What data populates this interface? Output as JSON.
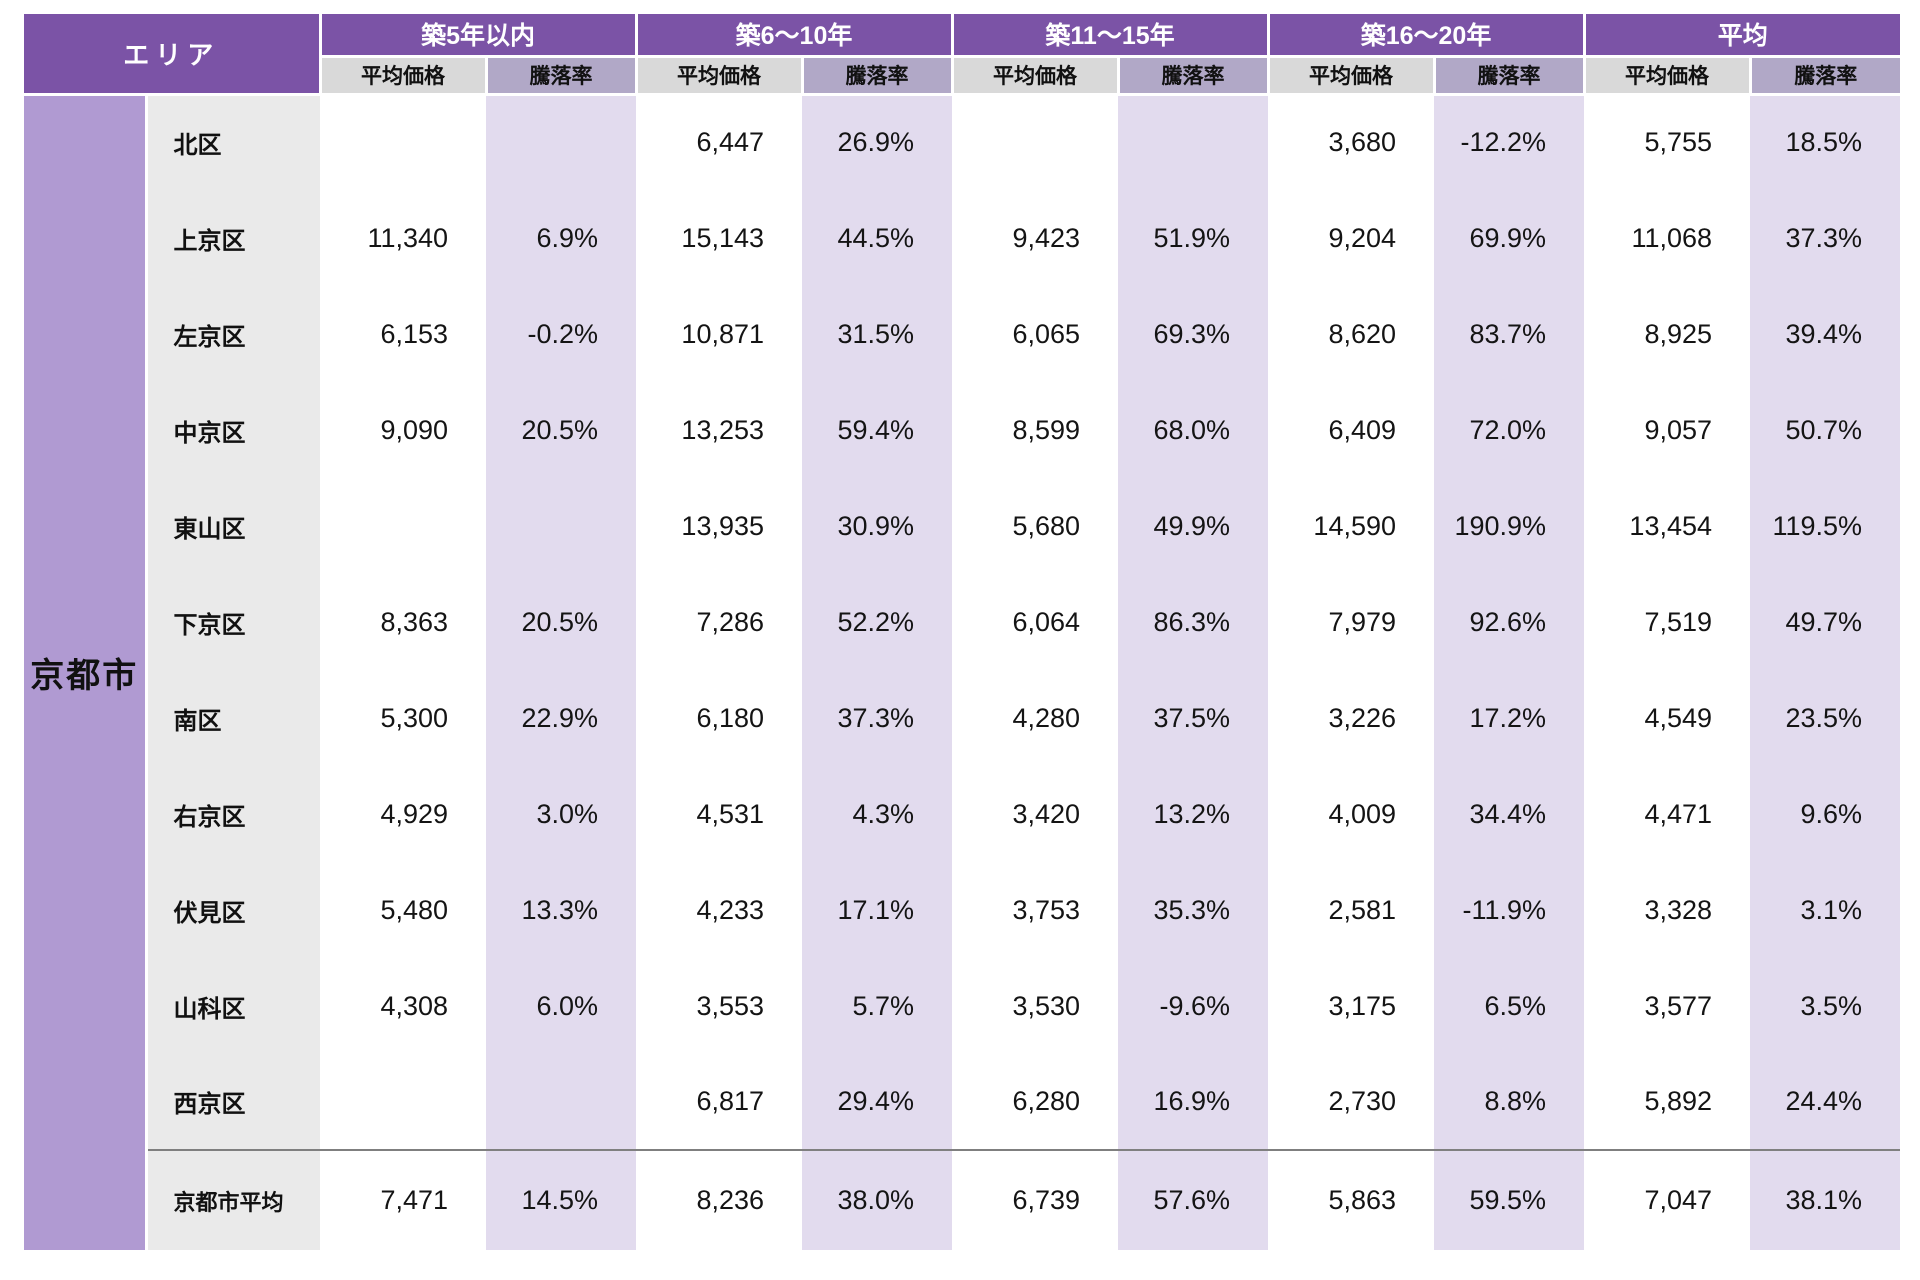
{
  "header": {
    "area_label": "エリア",
    "groups": [
      "築5年以内",
      "築6〜10年",
      "築11〜15年",
      "築16〜20年",
      "平均"
    ],
    "sub_price_label": "平均価格",
    "sub_rate_label": "騰落率"
  },
  "city_label": "京都市",
  "colors": {
    "header_purple": "#7B53A6",
    "city_column_purple": "#B09AD2",
    "subheader_gray": "#D9D9D9",
    "subheader_purple_gray": "#B1A8C7",
    "district_column_gray": "#EAEAEA",
    "rate_cell_lavender": "#E2DBEE",
    "average_separator_gray": "#7F7F7F"
  },
  "chart_data": {
    "type": "table",
    "row_header": "エリア",
    "column_groups": [
      "築5年以内",
      "築6〜10年",
      "築11〜15年",
      "築16〜20年",
      "平均"
    ],
    "sub_columns": [
      "平均価格",
      "騰落率"
    ],
    "city": "京都市",
    "rows": [
      {
        "district": "北区",
        "values": [
          "",
          "",
          "6,447",
          "26.9%",
          "",
          "",
          "3,680",
          "-12.2%",
          "5,755",
          "18.5%"
        ]
      },
      {
        "district": "上京区",
        "values": [
          "11,340",
          "6.9%",
          "15,143",
          "44.5%",
          "9,423",
          "51.9%",
          "9,204",
          "69.9%",
          "11,068",
          "37.3%"
        ]
      },
      {
        "district": "左京区",
        "values": [
          "6,153",
          "-0.2%",
          "10,871",
          "31.5%",
          "6,065",
          "69.3%",
          "8,620",
          "83.7%",
          "8,925",
          "39.4%"
        ]
      },
      {
        "district": "中京区",
        "values": [
          "9,090",
          "20.5%",
          "13,253",
          "59.4%",
          "8,599",
          "68.0%",
          "6,409",
          "72.0%",
          "9,057",
          "50.7%"
        ]
      },
      {
        "district": "東山区",
        "values": [
          "",
          "",
          "13,935",
          "30.9%",
          "5,680",
          "49.9%",
          "14,590",
          "190.9%",
          "13,454",
          "119.5%"
        ]
      },
      {
        "district": "下京区",
        "values": [
          "8,363",
          "20.5%",
          "7,286",
          "52.2%",
          "6,064",
          "86.3%",
          "7,979",
          "92.6%",
          "7,519",
          "49.7%"
        ]
      },
      {
        "district": "南区",
        "values": [
          "5,300",
          "22.9%",
          "6,180",
          "37.3%",
          "4,280",
          "37.5%",
          "3,226",
          "17.2%",
          "4,549",
          "23.5%"
        ]
      },
      {
        "district": "右京区",
        "values": [
          "4,929",
          "3.0%",
          "4,531",
          "4.3%",
          "3,420",
          "13.2%",
          "4,009",
          "34.4%",
          "4,471",
          "9.6%"
        ]
      },
      {
        "district": "伏見区",
        "values": [
          "5,480",
          "13.3%",
          "4,233",
          "17.1%",
          "3,753",
          "35.3%",
          "2,581",
          "-11.9%",
          "3,328",
          "3.1%"
        ]
      },
      {
        "district": "山科区",
        "values": [
          "4,308",
          "6.0%",
          "3,553",
          "5.7%",
          "3,530",
          "-9.6%",
          "3,175",
          "6.5%",
          "3,577",
          "3.5%"
        ]
      },
      {
        "district": "西京区",
        "values": [
          "",
          "",
          "6,817",
          "29.4%",
          "6,280",
          "16.9%",
          "2,730",
          "8.8%",
          "5,892",
          "24.4%"
        ]
      }
    ],
    "average_row": {
      "district": "京都市平均",
      "values": [
        "7,471",
        "14.5%",
        "8,236",
        "38.0%",
        "6,739",
        "57.6%",
        "5,863",
        "59.5%",
        "7,047",
        "38.1%"
      ]
    }
  }
}
